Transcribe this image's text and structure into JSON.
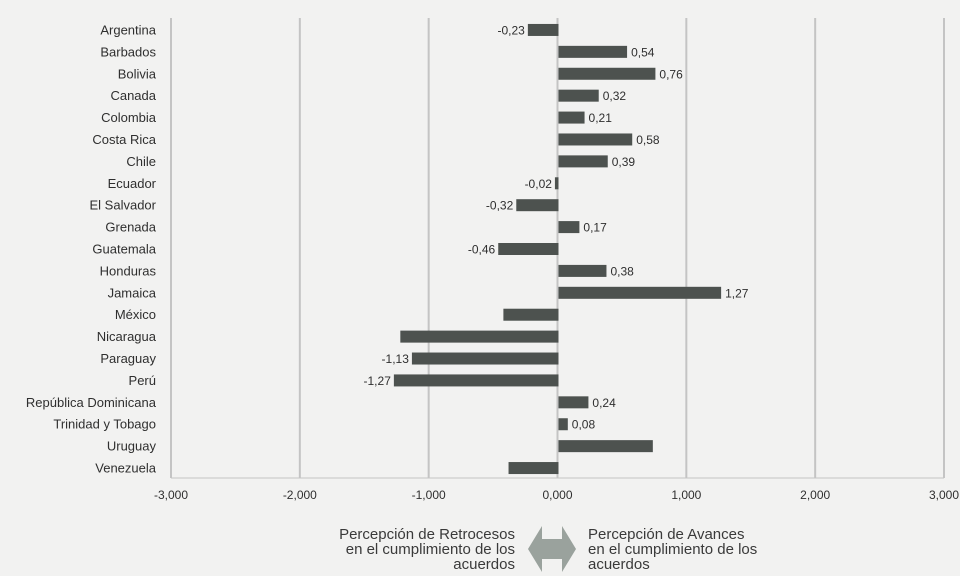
{
  "chart_data": {
    "type": "bar",
    "orientation": "horizontal",
    "categories": [
      "Argentina",
      "Barbados",
      "Bolivia",
      "Canada",
      "Colombia",
      "Costa Rica",
      "Chile",
      "Ecuador",
      "El Salvador",
      "Grenada",
      "Guatemala",
      "Honduras",
      "Jamaica",
      "México",
      "Nicaragua",
      "Paraguay",
      "Perú",
      "República Dominicana",
      "Trinidad y Tobago",
      "Uruguay",
      "Venezuela"
    ],
    "values": [
      -0.23,
      0.54,
      0.76,
      0.32,
      0.21,
      0.58,
      0.39,
      -0.02,
      -0.32,
      0.17,
      -0.46,
      0.38,
      1.27,
      -0.42,
      -1.22,
      -1.13,
      -1.27,
      0.24,
      0.08,
      0.74,
      -0.38
    ],
    "data_labels": [
      "-0,23",
      "0,54",
      "0,76",
      "0,32",
      "0,21",
      "0,58",
      "0,39",
      "-0,02",
      "-0,32",
      "0,17",
      "-0,46",
      "0,38",
      "1,27",
      "",
      "",
      "-1,13",
      "-1,27",
      "0,24",
      "0,08",
      "",
      ""
    ],
    "xlim": [
      -3,
      3
    ],
    "x_ticks": [
      -3,
      -2,
      -1,
      0,
      1,
      2,
      3
    ],
    "x_tick_labels": [
      "-3,000",
      "-2,000",
      "-1,000",
      "0,000",
      "1,000",
      "2,000",
      "3,000"
    ],
    "grid": true,
    "bar_color": "#4d524f",
    "grid_color": "#c4c4c4",
    "annotation_left": [
      "Percepción de Retrocesos",
      "en el cumplimiento de los",
      "acuerdos"
    ],
    "annotation_right": [
      "Percepción de Avances",
      "en el cumplimiento de los",
      "acuerdos"
    ],
    "arrow_color": "#9aa29d"
  }
}
